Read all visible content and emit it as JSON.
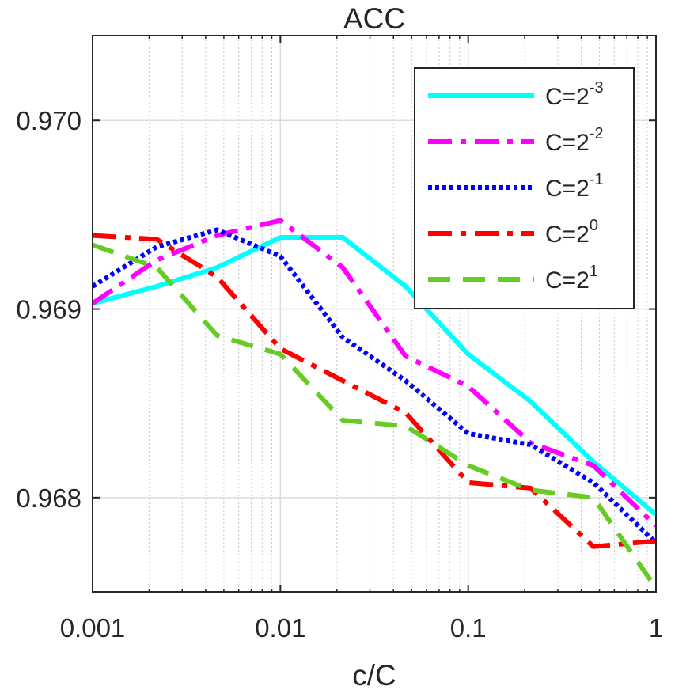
{
  "chart_data": {
    "type": "line",
    "title": "ACC",
    "xlabel": "c/C",
    "ylabel": "",
    "xscale": "log",
    "xlim": [
      0.001,
      1
    ],
    "ylim": [
      0.9675,
      0.97045
    ],
    "xticks": [
      {
        "value": 0.001,
        "label": "0.001"
      },
      {
        "value": 0.01,
        "label": "0.01"
      },
      {
        "value": 0.1,
        "label": "0.1"
      },
      {
        "value": 1,
        "label": "1"
      }
    ],
    "yticks": [
      {
        "value": 0.968,
        "label": "0.968"
      },
      {
        "value": 0.969,
        "label": "0.969"
      },
      {
        "value": 0.97,
        "label": "0.970"
      }
    ],
    "grid": true,
    "minor_grid": true,
    "legend": {
      "position": "top-right"
    },
    "series": [
      {
        "name": "C=2^-3",
        "label_base": "C=2",
        "label_exp": "-3",
        "color": "#00FFFF",
        "dash": "solid",
        "x": [
          0.001,
          0.0022,
          0.0046,
          0.01,
          0.0215,
          0.0464,
          0.1,
          0.215,
          0.464,
          1
        ],
        "y": [
          0.96903,
          0.96912,
          0.96922,
          0.96938,
          0.96938,
          0.96912,
          0.96876,
          0.96851,
          0.96819,
          0.96791
        ]
      },
      {
        "name": "C=2^-2",
        "label_base": "C=2",
        "label_exp": "-2",
        "color": "#FF00FF",
        "dash": "dashdot",
        "x": [
          0.001,
          0.0022,
          0.0046,
          0.01,
          0.0215,
          0.0464,
          0.1,
          0.215,
          0.464,
          1
        ],
        "y": [
          0.96903,
          0.96926,
          0.96939,
          0.96947,
          0.96922,
          0.96875,
          0.96859,
          0.96829,
          0.96817,
          0.96785
        ]
      },
      {
        "name": "C=2^-1",
        "label_base": "C=2",
        "label_exp": "-1",
        "color": "#0000FF",
        "dash": "dotted",
        "x": [
          0.001,
          0.0022,
          0.0046,
          0.01,
          0.0215,
          0.0464,
          0.1,
          0.215,
          0.464,
          1
        ],
        "y": [
          0.96912,
          0.96933,
          0.96942,
          0.96928,
          0.96885,
          0.96862,
          0.96834,
          0.96828,
          0.96808,
          0.96776
        ]
      },
      {
        "name": "C=2^0",
        "label_base": "C=2",
        "label_exp": "0",
        "color": "#FF0000",
        "dash": "dashdot",
        "x": [
          0.001,
          0.0022,
          0.0046,
          0.01,
          0.0215,
          0.0464,
          0.1,
          0.215,
          0.464,
          1
        ],
        "y": [
          0.96939,
          0.96937,
          0.96917,
          0.96879,
          0.96862,
          0.96845,
          0.96808,
          0.96805,
          0.96774,
          0.96777
        ]
      },
      {
        "name": "C=2^1",
        "label_base": "C=2",
        "label_exp": "1",
        "color": "#66CC22",
        "dash": "dashed",
        "x": [
          0.001,
          0.0022,
          0.0046,
          0.01,
          0.0215,
          0.0464,
          0.1,
          0.215,
          0.464,
          1
        ],
        "y": [
          0.96934,
          0.96922,
          0.96886,
          0.96876,
          0.96841,
          0.96838,
          0.96817,
          0.96804,
          0.968,
          0.96752
        ]
      }
    ]
  }
}
